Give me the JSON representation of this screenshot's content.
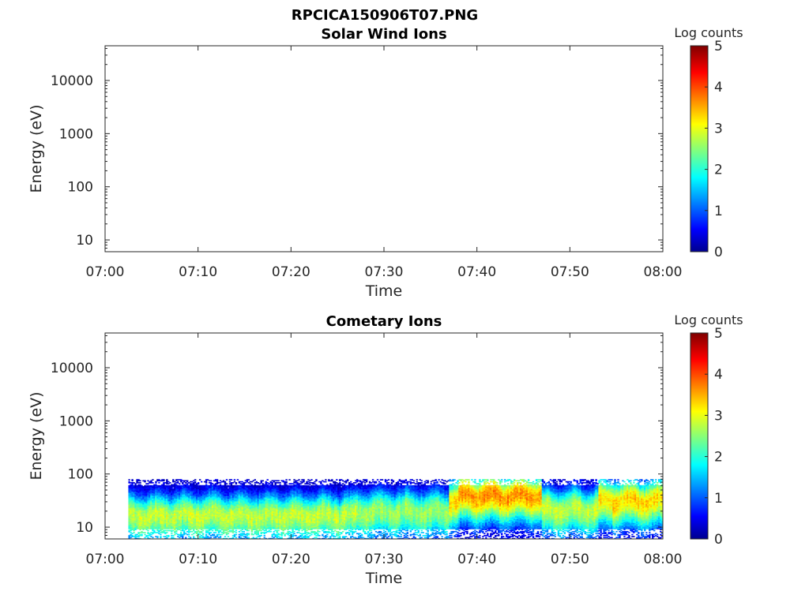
{
  "figure": {
    "title": "RPCICA150906T07.PNG"
  },
  "chart_data": [
    {
      "type": "heatmap",
      "title": "Solar Wind Ions",
      "xlabel": "Time",
      "ylabel": "Energy (eV)",
      "x_ticks": [
        "07:00",
        "07:10",
        "07:20",
        "07:30",
        "07:40",
        "07:50",
        "08:00"
      ],
      "x_range": [
        "07:00",
        "08:00"
      ],
      "y_scale": "log",
      "y_ticks": [
        10,
        100,
        1000,
        10000
      ],
      "y_range": [
        6,
        45000
      ],
      "colorbar": {
        "label": "Log counts",
        "range": [
          0,
          5
        ],
        "ticks": [
          0,
          1,
          2,
          3,
          4,
          5
        ],
        "colormap": "jet"
      },
      "data_present": false,
      "bands": []
    },
    {
      "type": "heatmap",
      "title": "Cometary Ions",
      "xlabel": "Time",
      "ylabel": "Energy (eV)",
      "x_ticks": [
        "07:00",
        "07:10",
        "07:20",
        "07:30",
        "07:40",
        "07:50",
        "08:00"
      ],
      "x_range": [
        "07:00",
        "08:00"
      ],
      "y_scale": "log",
      "y_ticks": [
        10,
        100,
        1000,
        10000
      ],
      "y_range": [
        6,
        45000
      ],
      "colorbar": {
        "label": "Log counts",
        "range": [
          0,
          5
        ],
        "ticks": [
          0,
          1,
          2,
          3,
          4,
          5
        ],
        "colormap": "jet"
      },
      "data_present": true,
      "data_start": "07:02:30",
      "data_end": "08:00",
      "upper_energy_edge": 80,
      "bands": [
        {
          "t_start": "07:02:30",
          "t_end": "07:27",
          "peak_energy": 17,
          "peak_log_counts": 2.8
        },
        {
          "t_start": "07:27",
          "t_end": "07:37",
          "peak_energy": 20,
          "peak_log_counts": 2.6
        },
        {
          "t_start": "07:38",
          "t_end": "07:47",
          "peak_energy": 40,
          "peak_log_counts": 3.6
        },
        {
          "t_start": "07:47",
          "t_end": "07:53",
          "peak_energy": 22,
          "peak_log_counts": 2.8
        },
        {
          "t_start": "07:53",
          "t_end": "08:00",
          "peak_energy": 32,
          "peak_log_counts": 3.3
        }
      ]
    }
  ]
}
